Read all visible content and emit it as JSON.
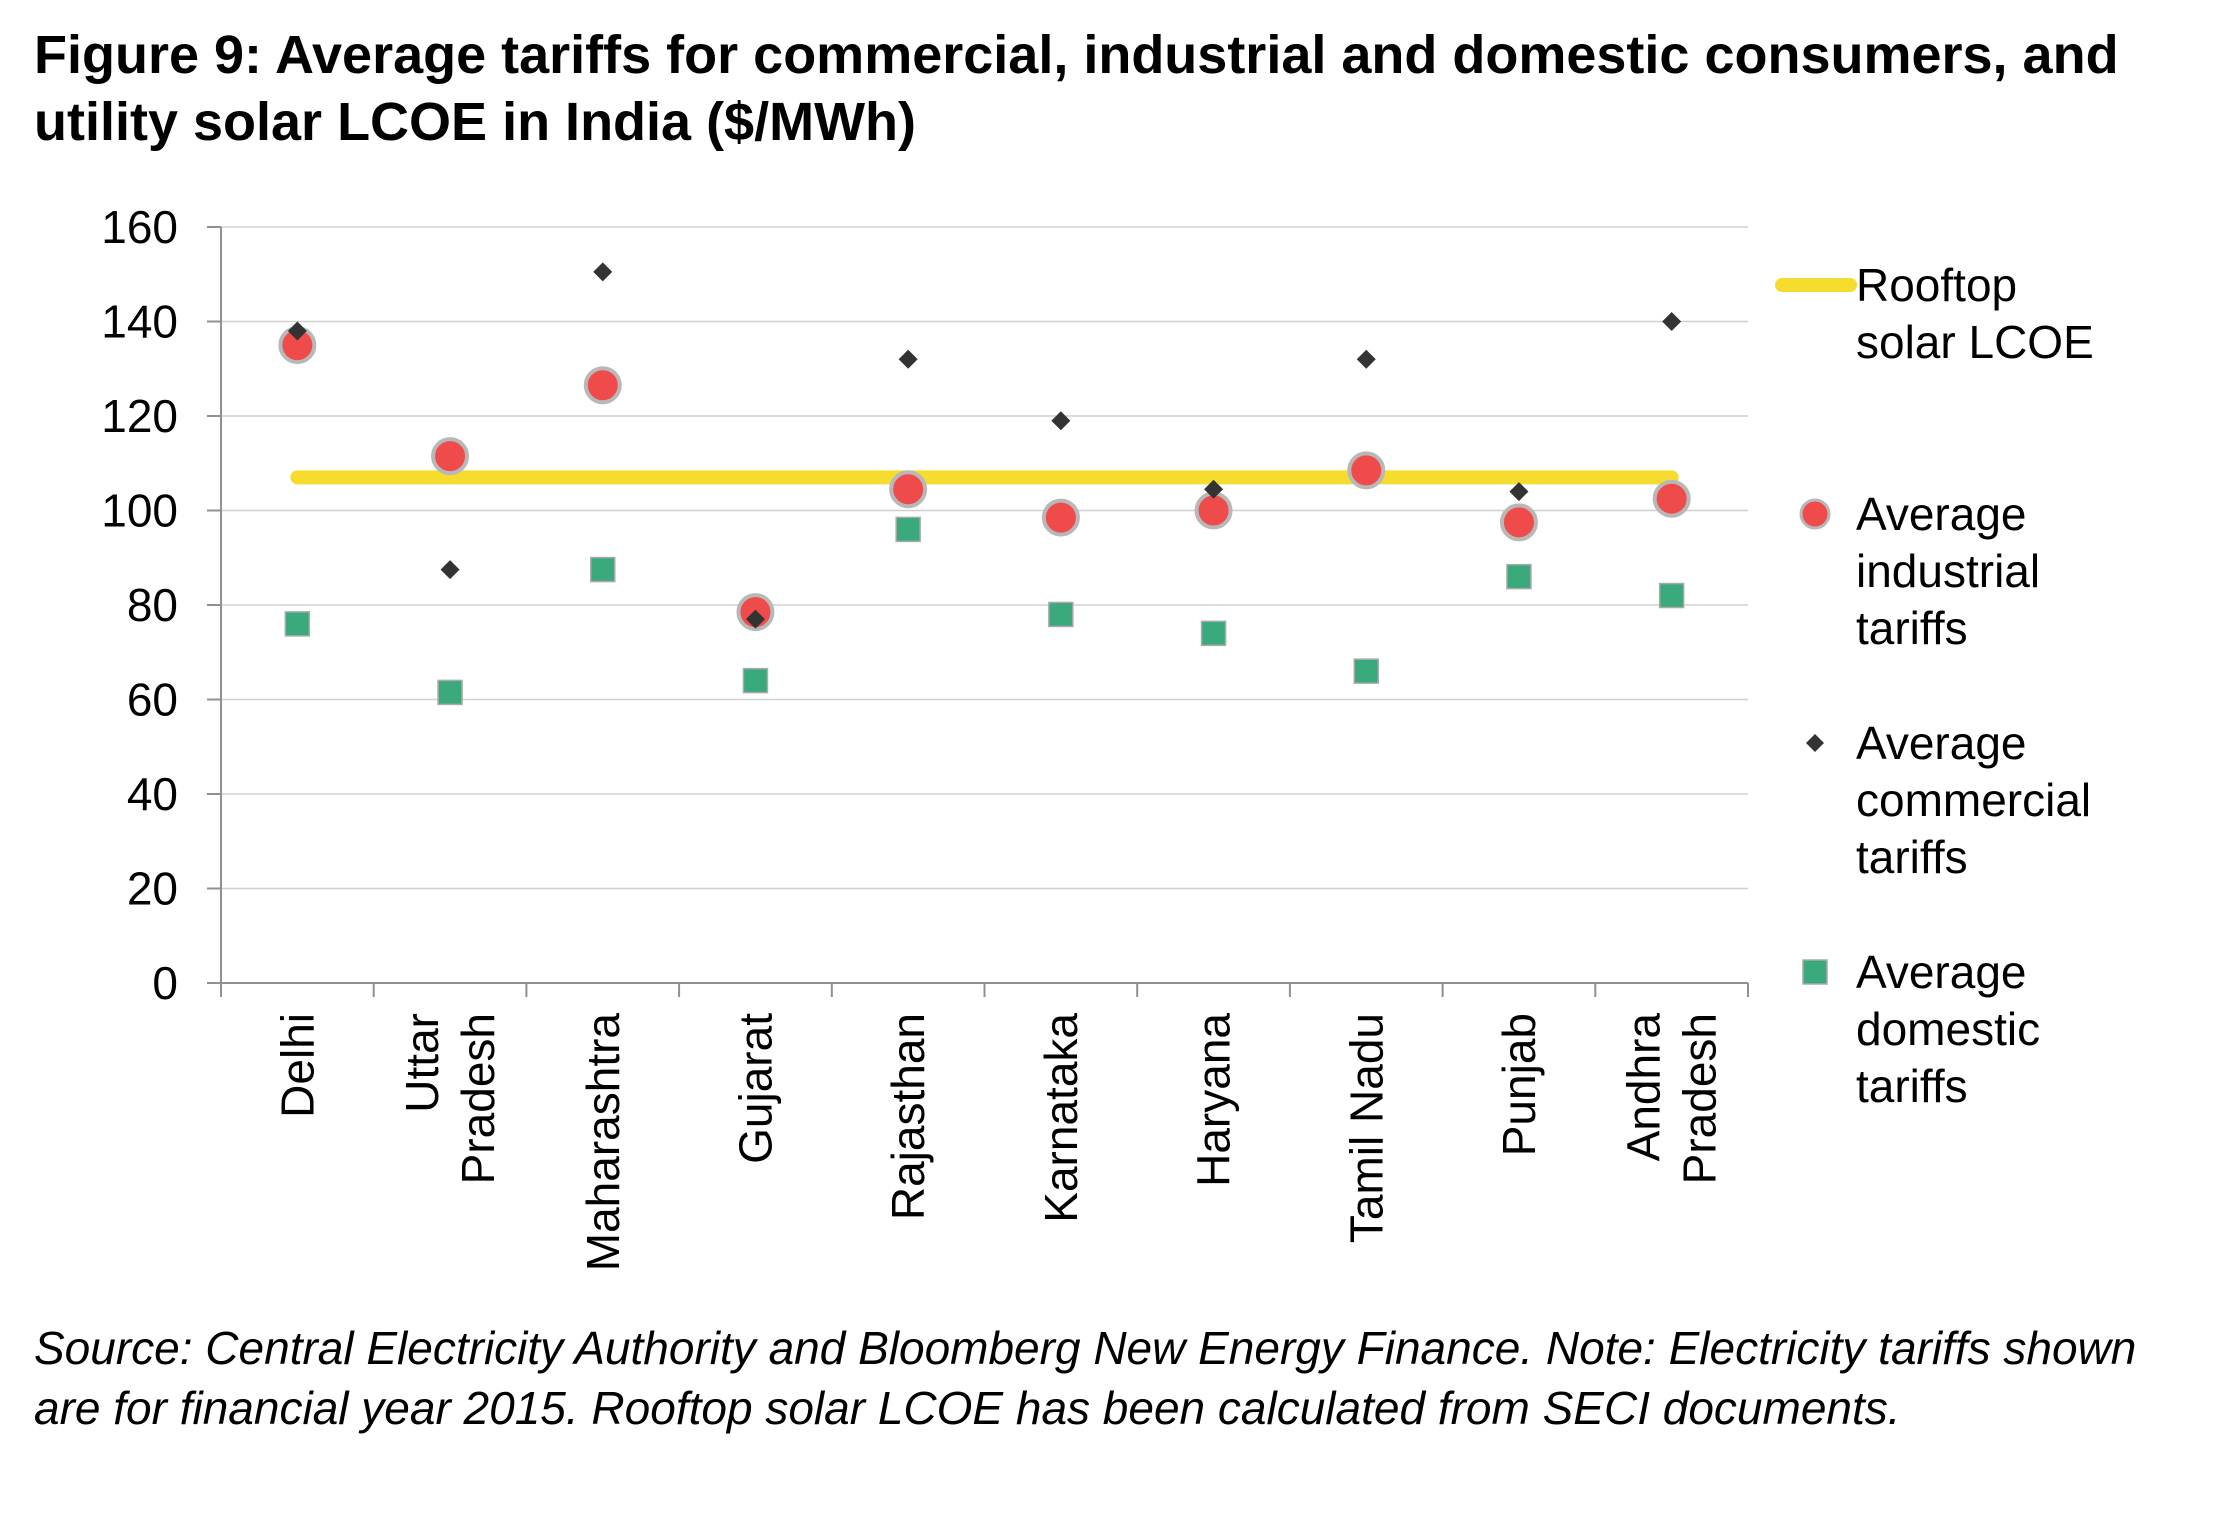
{
  "header": {
    "title": "Figure 9: Average tariffs for commercial, industrial and domestic consumers, and utility solar LCOE in India ($/MWh)"
  },
  "footer": {
    "source": "Source: Central Electricity Authority and Bloomberg New Energy Finance. Note: Electricity tariffs shown are for financial year 2015. Rooftop solar LCOE has been calculated from SECI documents."
  },
  "chart_data": {
    "type": "scatter",
    "categories": [
      [
        "Delhi"
      ],
      [
        "Uttar",
        "Pradesh"
      ],
      [
        "Maharashtra"
      ],
      [
        "Gujarat"
      ],
      [
        "Rajasthan"
      ],
      [
        "Karnataka"
      ],
      [
        "Haryana"
      ],
      [
        "Tamil Nadu"
      ],
      [
        "Punjab"
      ],
      [
        "Andhra",
        "Pradesh"
      ]
    ],
    "ylim": [
      0,
      160
    ],
    "yticks": [
      0,
      20,
      40,
      60,
      80,
      100,
      120,
      140,
      160
    ],
    "grid": true,
    "legend_position": "right",
    "series": [
      {
        "name": [
          "Rooftop",
          "solar LCOE"
        ],
        "type": "line",
        "color": "#f5dc2f",
        "values": [
          107,
          107,
          107,
          107,
          107,
          107,
          107,
          107,
          107,
          107
        ]
      },
      {
        "name": [
          "Average",
          "industrial",
          "tariffs"
        ],
        "type": "circle",
        "color": "#ef4b4b",
        "stroke": "#b8b8b8",
        "values": [
          135,
          111.5,
          126.5,
          78.5,
          104.5,
          98.5,
          100,
          108.5,
          97.5,
          102.5
        ]
      },
      {
        "name": [
          "Average",
          "commercial",
          "tariffs"
        ],
        "type": "diamond",
        "color": "#333333",
        "values": [
          138,
          87.5,
          150.5,
          77,
          132,
          119,
          104.5,
          132,
          104,
          140
        ]
      },
      {
        "name": [
          "Average",
          "domestic",
          "tariffs"
        ],
        "type": "square",
        "color": "#3aa97c",
        "values": [
          76,
          61.5,
          87.5,
          64,
          96,
          78,
          74,
          66,
          86,
          82
        ]
      }
    ]
  }
}
